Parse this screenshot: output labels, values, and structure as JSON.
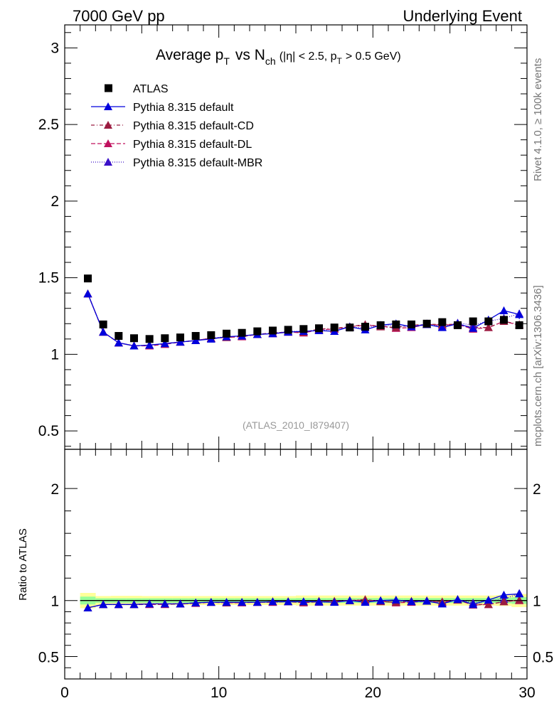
{
  "header": {
    "left": "7000 GeV pp",
    "right": "Underlying Event"
  },
  "side_labels": {
    "rivet": "Rivet 4.1.0, ≥ 100k events",
    "mcplots": "mcplots.cern.ch [arXiv:1306.3436]"
  },
  "title": {
    "main": "Average p",
    "main_sub": "T",
    "vs": "vs N",
    "vs_sub": "ch",
    "cut1": "(|η| < 2.5, p",
    "cut_sub": "T",
    "cut2": "> 0.5 GeV)"
  },
  "analysis_id": "(ATLAS_2010_I879407)",
  "ratio_ylabel": "Ratio to ATLAS",
  "legend": [
    {
      "label": "ATLAS",
      "color": "#000000",
      "marker": "square",
      "dash": ""
    },
    {
      "label": "Pythia 8.315 default",
      "color": "#0000dd",
      "marker": "triangle",
      "dash": ""
    },
    {
      "label": "Pythia 8.315 default-CD",
      "color": "#9b1c40",
      "marker": "triangle",
      "dash": "5,3,1,3"
    },
    {
      "label": "Pythia 8.315 default-DL",
      "color": "#c0105e",
      "marker": "triangle",
      "dash": "6,3"
    },
    {
      "label": "Pythia 8.315 default-MBR",
      "color": "#3a10c8",
      "marker": "triangle",
      "dash": "1,2"
    }
  ],
  "chart_data": [
    {
      "type": "scatter",
      "title": "Average pT vs Nch (|eta| < 2.5, pT > 0.5 GeV)",
      "xlabel": "",
      "ylabel": "",
      "xlim": [
        0,
        30
      ],
      "ylim": [
        0.38,
        3.15
      ],
      "y_ticks": [
        0.5,
        1,
        1.5,
        2,
        2.5,
        3
      ],
      "y_tick_labels": [
        "0.5",
        "1",
        "1.5",
        "2",
        "2.5",
        "3"
      ],
      "x": [
        1.5,
        2.5,
        3.5,
        4.5,
        5.5,
        6.5,
        7.5,
        8.5,
        9.5,
        10.5,
        11.5,
        12.5,
        13.5,
        14.5,
        15.5,
        16.5,
        17.5,
        18.5,
        19.5,
        20.5,
        21.5,
        22.5,
        23.5,
        24.5,
        25.5,
        26.5,
        27.5,
        28.5,
        29.5
      ],
      "series": [
        {
          "name": "ATLAS",
          "values": [
            1.495,
            1.195,
            1.12,
            1.105,
            1.1,
            1.105,
            1.11,
            1.12,
            1.125,
            1.135,
            1.14,
            1.15,
            1.155,
            1.16,
            1.165,
            1.17,
            1.175,
            1.175,
            1.18,
            1.19,
            1.195,
            1.195,
            1.2,
            1.21,
            1.19,
            1.215,
            1.215,
            1.225,
            1.19
          ]
        },
        {
          "name": "Pythia 8.315 default",
          "values": [
            1.395,
            1.145,
            1.075,
            1.055,
            1.06,
            1.07,
            1.08,
            1.09,
            1.1,
            1.115,
            1.12,
            1.13,
            1.135,
            1.145,
            1.15,
            1.155,
            1.15,
            1.18,
            1.16,
            1.19,
            1.2,
            1.18,
            1.195,
            1.175,
            1.2,
            1.17,
            1.225,
            1.285,
            1.26
          ]
        },
        {
          "name": "Pythia 8.315 default-CD",
          "values": [
            1.395,
            1.145,
            1.075,
            1.055,
            1.06,
            1.07,
            1.08,
            1.09,
            1.105,
            1.11,
            1.12,
            1.13,
            1.14,
            1.145,
            1.145,
            1.165,
            1.17,
            1.18,
            1.195,
            1.18,
            1.175,
            1.19,
            1.195,
            1.195,
            1.195,
            1.175,
            1.175,
            1.215,
            1.195
          ]
        },
        {
          "name": "Pythia 8.315 default-DL",
          "values": [
            1.395,
            1.145,
            1.075,
            1.055,
            1.055,
            1.065,
            1.08,
            1.09,
            1.105,
            1.11,
            1.115,
            1.13,
            1.135,
            1.145,
            1.14,
            1.16,
            1.165,
            1.18,
            1.19,
            1.185,
            1.17,
            1.175,
            1.195,
            1.19,
            1.195,
            1.165,
            1.175,
            1.215,
            1.19
          ]
        },
        {
          "name": "Pythia 8.315 default-MBR",
          "values": [
            1.395,
            1.145,
            1.075,
            1.055,
            1.06,
            1.07,
            1.08,
            1.09,
            1.105,
            1.115,
            1.12,
            1.13,
            1.135,
            1.15,
            1.15,
            1.155,
            1.165,
            1.175,
            1.175,
            1.19,
            1.185,
            1.18,
            1.2,
            1.18,
            1.205,
            1.19,
            1.215,
            1.235,
            1.265
          ]
        }
      ]
    },
    {
      "type": "scatter",
      "title": "",
      "xlabel": "",
      "ylabel": "Ratio to ATLAS",
      "xlim": [
        0,
        30
      ],
      "ylim": [
        0.3,
        2.35
      ],
      "y_ticks": [
        0.5,
        1,
        2
      ],
      "y_tick_labels": [
        "0.5",
        "1",
        "2"
      ],
      "x_ticks": [
        0,
        10,
        20,
        30
      ],
      "x_tick_labels": [
        "0",
        "10",
        "20",
        "30"
      ],
      "x": [
        1.5,
        2.5,
        3.5,
        4.5,
        5.5,
        6.5,
        7.5,
        8.5,
        9.5,
        10.5,
        11.5,
        12.5,
        13.5,
        14.5,
        15.5,
        16.5,
        17.5,
        18.5,
        19.5,
        20.5,
        21.5,
        22.5,
        23.5,
        24.5,
        25.5,
        26.5,
        27.5,
        28.5,
        29.5
      ],
      "band_yellow_halfwidth": [
        0.068,
        0.04,
        0.042,
        0.042,
        0.04,
        0.04,
        0.04,
        0.04,
        0.04,
        0.04,
        0.04,
        0.04,
        0.04,
        0.04,
        0.045,
        0.045,
        0.045,
        0.045,
        0.045,
        0.045,
        0.045,
        0.045,
        0.045,
        0.045,
        0.045,
        0.045,
        0.045,
        0.048,
        0.058
      ],
      "band_green_halfwidth": [
        0.035,
        0.02,
        0.02,
        0.02,
        0.02,
        0.02,
        0.02,
        0.02,
        0.02,
        0.02,
        0.02,
        0.02,
        0.02,
        0.02,
        0.022,
        0.022,
        0.022,
        0.022,
        0.022,
        0.022,
        0.022,
        0.022,
        0.022,
        0.022,
        0.022,
        0.022,
        0.022,
        0.025,
        0.03
      ],
      "series": [
        {
          "name": "Pythia 8.315 default",
          "values": [
            0.935,
            0.965,
            0.965,
            0.965,
            0.97,
            0.97,
            0.97,
            0.98,
            0.985,
            0.985,
            0.985,
            0.985,
            0.99,
            0.99,
            0.99,
            0.99,
            0.985,
            1.0,
            0.985,
            1.0,
            1.005,
            0.99,
            0.995,
            0.97,
            1.01,
            0.965,
            1.005,
            1.05,
            1.06
          ]
        },
        {
          "name": "Pythia 8.315 default-CD",
          "values": [
            0.935,
            0.965,
            0.965,
            0.965,
            0.97,
            0.97,
            0.97,
            0.98,
            0.985,
            0.98,
            0.985,
            0.985,
            0.99,
            0.99,
            0.985,
            0.995,
            0.995,
            1.0,
            1.01,
            0.99,
            0.985,
            0.995,
            0.995,
            0.99,
            1.005,
            0.965,
            0.965,
            0.99,
            1.005
          ]
        },
        {
          "name": "Pythia 8.315 default-DL",
          "values": [
            0.935,
            0.965,
            0.965,
            0.965,
            0.965,
            0.965,
            0.97,
            0.975,
            0.985,
            0.98,
            0.98,
            0.985,
            0.985,
            0.99,
            0.98,
            0.99,
            0.99,
            1.0,
            1.005,
            0.995,
            0.98,
            0.985,
            0.995,
            0.985,
            1.005,
            0.96,
            0.965,
            0.99,
            1.0
          ]
        },
        {
          "name": "Pythia 8.315 default-MBR",
          "values": [
            0.935,
            0.965,
            0.965,
            0.965,
            0.97,
            0.97,
            0.97,
            0.98,
            0.985,
            0.985,
            0.985,
            0.985,
            0.985,
            0.99,
            0.99,
            0.985,
            0.99,
            1.0,
            0.995,
            1.0,
            0.995,
            0.99,
            1.0,
            0.975,
            1.01,
            0.98,
            1.0,
            1.01,
            1.065
          ]
        }
      ]
    }
  ]
}
